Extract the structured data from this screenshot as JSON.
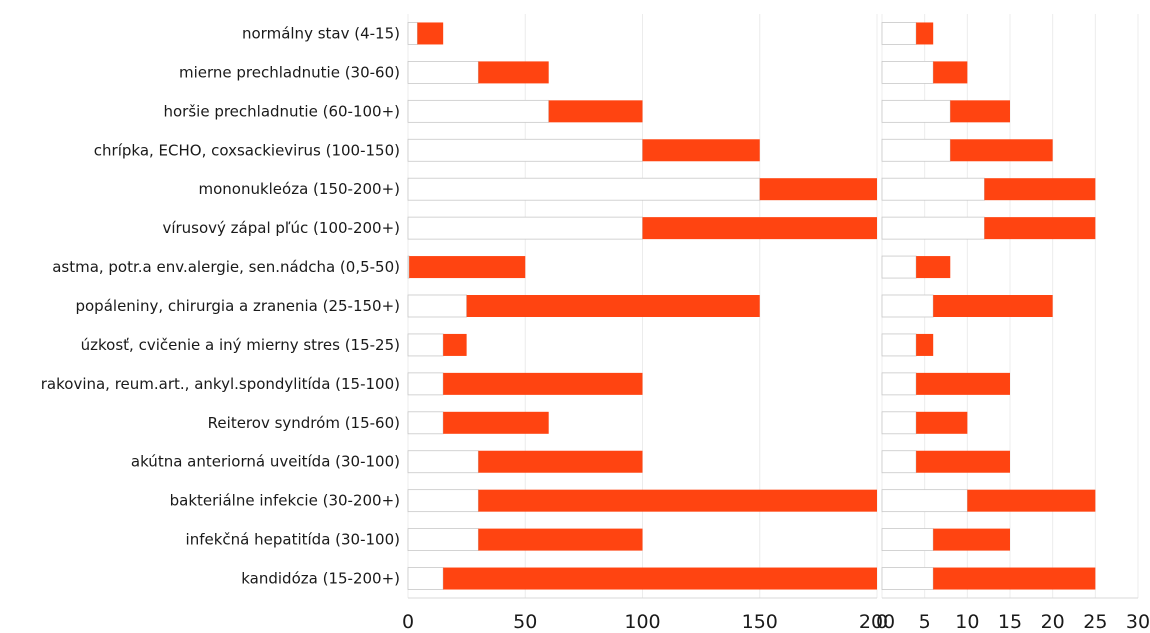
{
  "chart_data": {
    "type": "bar",
    "orientation": "horizontal",
    "stacked": true,
    "grid": true,
    "colors": {
      "range": "#ff4411",
      "offset_fill": "#ffffff",
      "offset_stroke": "#c8c8c8",
      "grid": "#ececec"
    },
    "categories": [
      "normálny stav (4-15)",
      "mierne prechladnutie (30-60)",
      "horšie prechladnutie (60-100+)",
      "chrípka, ECHO, coxsackievirus (100-150)",
      "mononukleóza (150-200+)",
      "vírusový zápal pľúc (100-200+)",
      "astma, potr.a env.alergie, sen.nádcha (0,5-50)",
      "popáleniny, chirurgia a zranenia (25-150+)",
      "úzkosť, cvičenie a iný mierny stres (15-25)",
      "rakovina, reum.art., ankyl.spondylitída (15-100)",
      "Reiterov syndróm (15-60)",
      "akútna anteriorná uveitída (30-100)",
      "bakteriálne infekcie (30-200+)",
      "infekčná hepatitída (30-100)",
      "kandidóza (15-200+)"
    ],
    "panels": [
      {
        "name": "left",
        "xlim": [
          0,
          200
        ],
        "xticks": [
          "0",
          "50",
          "100",
          "150",
          "200"
        ],
        "tick_values": [
          0,
          50,
          100,
          150,
          200
        ],
        "ranges": [
          [
            4,
            15
          ],
          [
            30,
            60
          ],
          [
            60,
            100
          ],
          [
            100,
            150
          ],
          [
            150,
            200
          ],
          [
            100,
            200
          ],
          [
            0.5,
            50
          ],
          [
            25,
            150
          ],
          [
            15,
            25
          ],
          [
            15,
            100
          ],
          [
            15,
            60
          ],
          [
            30,
            100
          ],
          [
            30,
            200
          ],
          [
            30,
            100
          ],
          [
            15,
            200
          ]
        ]
      },
      {
        "name": "right",
        "xlim": [
          0,
          30
        ],
        "xticks": [
          "0",
          "5",
          "10",
          "15",
          "20",
          "25",
          "30"
        ],
        "tick_values": [
          0,
          5,
          10,
          15,
          20,
          25,
          30
        ],
        "ranges": [
          [
            4,
            6
          ],
          [
            6,
            10
          ],
          [
            8,
            15
          ],
          [
            8,
            20
          ],
          [
            12,
            25
          ],
          [
            12,
            25
          ],
          [
            4,
            8
          ],
          [
            6,
            20
          ],
          [
            4,
            6
          ],
          [
            4,
            15
          ],
          [
            4,
            10
          ],
          [
            4,
            15
          ],
          [
            10,
            25
          ],
          [
            6,
            15
          ],
          [
            6,
            25
          ]
        ]
      }
    ]
  }
}
